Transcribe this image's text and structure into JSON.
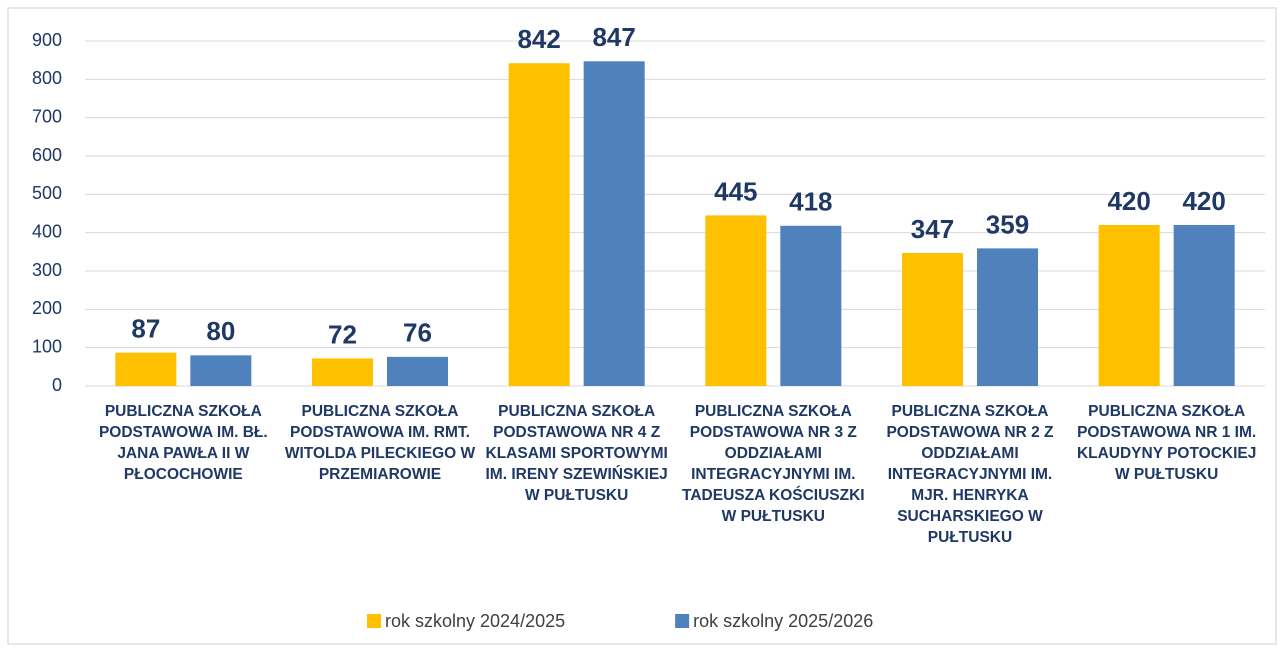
{
  "chart_data": {
    "type": "bar",
    "categories": [
      "PUBLICZNA SZKOŁA PODSTAWOWA IM. BŁ. JANA PAWŁA II W PŁOCOCHOWIE",
      "PUBLICZNA SZKOŁA PODSTAWOWA IM. RMT. WITOLDA PILECKIEGO W PRZEMIAROWIE",
      "PUBLICZNA SZKOŁA PODSTAWOWA NR 4 Z KLASAMI SPORTOWYMI IM. IRENY SZEWIŃSKIEJ W PUŁTUSKU",
      "PUBLICZNA SZKOŁA PODSTAWOWA NR 3 Z ODDZIAŁAMI INTEGRACYJNYMI IM. TADEUSZA KOŚCIUSZKI W PUŁTUSKU",
      "PUBLICZNA SZKOŁA PODSTAWOWA NR 2 Z ODDZIAŁAMI INTEGRACYJNYMI IM. MJR. HENRYKA SUCHARSKIEGO W PUŁTUSKU",
      "PUBLICZNA SZKOŁA PODSTAWOWA NR 1 IM. KLAUDYNY POTOCKIEJ W PUŁTUSKU"
    ],
    "series": [
      {
        "name": "rok szkolny 2024/2025",
        "color": "#ffc000",
        "values": [
          87,
          72,
          842,
          445,
          347,
          420
        ]
      },
      {
        "name": "rok szkolny 2025/2026",
        "color": "#4f81bd",
        "values": [
          80,
          76,
          847,
          418,
          359,
          420
        ]
      }
    ],
    "ylim": [
      0,
      900
    ],
    "yticks": [
      0,
      100,
      200,
      300,
      400,
      500,
      600,
      700,
      800,
      900
    ],
    "grid": true,
    "legend": "bottom"
  }
}
